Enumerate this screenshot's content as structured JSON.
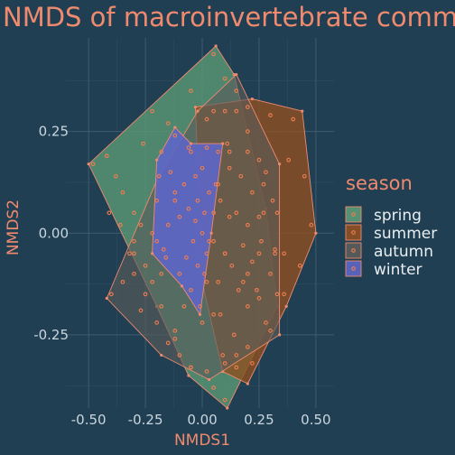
{
  "chart_data": {
    "type": "scatter",
    "title": "NMDS of macroinvertebrate comm",
    "xlabel": "NMDS1",
    "ylabel": "NMDS2",
    "xlim": [
      -0.6,
      0.58
    ],
    "ylim": [
      -0.43,
      0.48
    ],
    "x_ticks": [
      -0.5,
      -0.25,
      0.0,
      0.25,
      0.5
    ],
    "x_tick_labels": [
      "-0.50",
      "-0.25",
      "0.00",
      "0.25",
      "0.50"
    ],
    "y_ticks": [
      -0.25,
      0.0,
      0.25
    ],
    "y_tick_labels": [
      "-0.25",
      "0.00",
      "0.25"
    ],
    "grid": true,
    "legend": {
      "title": "season",
      "position": "right"
    },
    "colors": {
      "background": "#213f52",
      "point": "#f37d4f",
      "hull_stroke": "#f08a6e"
    },
    "series": [
      {
        "name": "spring",
        "fill": "#5b9a76",
        "fill_opacity": 0.78,
        "hull": [
          [
            0.06,
            0.46
          ],
          [
            0.14,
            0.39
          ],
          [
            0.28,
            0.06
          ],
          [
            0.33,
            -0.18
          ],
          [
            0.11,
            -0.43
          ],
          [
            -0.06,
            -0.35
          ],
          [
            -0.2,
            -0.18
          ],
          [
            -0.5,
            0.17
          ]
        ],
        "points": [
          [
            -0.48,
            0.17
          ],
          [
            -0.42,
            0.19
          ],
          [
            -0.38,
            0.14
          ],
          [
            -0.35,
            0.1
          ],
          [
            -0.3,
            0.05
          ],
          [
            -0.27,
            0.02
          ],
          [
            -0.32,
            -0.05
          ],
          [
            -0.25,
            -0.08
          ],
          [
            -0.22,
            -0.12
          ],
          [
            -0.3,
            -0.02
          ],
          [
            -0.18,
            -0.18
          ],
          [
            -0.12,
            -0.26
          ],
          [
            -0.05,
            -0.33
          ],
          [
            0.05,
            -0.38
          ],
          [
            0.1,
            -0.41
          ],
          [
            0.15,
            -0.3
          ],
          [
            0.2,
            -0.18
          ],
          [
            0.25,
            -0.05
          ],
          [
            0.27,
            0.05
          ],
          [
            0.2,
            0.2
          ],
          [
            0.15,
            0.3
          ],
          [
            0.1,
            0.38
          ],
          [
            0.05,
            0.44
          ],
          [
            -0.05,
            0.35
          ],
          [
            -0.15,
            0.27
          ],
          [
            -0.26,
            0.22
          ],
          [
            -0.36,
            0.02
          ],
          [
            -0.41,
            0.05
          ],
          [
            -0.22,
            0.3
          ]
        ]
      },
      {
        "name": "summer",
        "fill": "#8f5021",
        "fill_opacity": 0.8,
        "hull": [
          [
            -0.03,
            0.31
          ],
          [
            0.22,
            0.33
          ],
          [
            0.44,
            0.3
          ],
          [
            0.5,
            0.0
          ],
          [
            0.37,
            -0.18
          ],
          [
            0.2,
            -0.37
          ],
          [
            0.09,
            -0.34
          ],
          [
            0.0,
            -0.12
          ]
        ],
        "points": [
          [
            0.02,
            0.28
          ],
          [
            0.1,
            0.3
          ],
          [
            0.2,
            0.31
          ],
          [
            0.3,
            0.29
          ],
          [
            0.4,
            0.28
          ],
          [
            0.45,
            0.14
          ],
          [
            0.48,
            0.02
          ],
          [
            0.43,
            -0.08
          ],
          [
            0.36,
            -0.15
          ],
          [
            0.28,
            -0.22
          ],
          [
            0.22,
            -0.32
          ],
          [
            0.15,
            -0.33
          ],
          [
            0.09,
            -0.3
          ],
          [
            0.05,
            -0.2
          ],
          [
            0.02,
            -0.12
          ],
          [
            0.01,
            0.05
          ],
          [
            0.12,
            0.2
          ],
          [
            0.25,
            0.18
          ],
          [
            0.33,
            0.05
          ],
          [
            0.36,
            -0.05
          ],
          [
            0.3,
            -0.1
          ],
          [
            0.18,
            -0.12
          ],
          [
            0.1,
            -0.05
          ],
          [
            0.2,
            0.02
          ],
          [
            0.27,
            0.12
          ],
          [
            0.38,
            0.18
          ],
          [
            0.14,
            -0.25
          ],
          [
            0.24,
            -0.14
          ],
          [
            0.07,
            0.12
          ],
          [
            0.32,
            -0.04
          ]
        ]
      },
      {
        "name": "autumn",
        "fill": "#5a5c5a",
        "fill_opacity": 0.62,
        "hull": [
          [
            -0.02,
            0.3
          ],
          [
            0.15,
            0.39
          ],
          [
            0.34,
            0.17
          ],
          [
            0.34,
            -0.25
          ],
          [
            0.03,
            -0.36
          ],
          [
            -0.18,
            -0.3
          ],
          [
            -0.42,
            -0.16
          ],
          [
            -0.2,
            0.13
          ]
        ],
        "points": [
          [
            -0.4,
            -0.15
          ],
          [
            -0.35,
            -0.12
          ],
          [
            -0.3,
            -0.1
          ],
          [
            -0.25,
            -0.15
          ],
          [
            -0.2,
            -0.22
          ],
          [
            -0.15,
            -0.27
          ],
          [
            -0.1,
            -0.3
          ],
          [
            -0.05,
            -0.33
          ],
          [
            0.02,
            -0.34
          ],
          [
            0.1,
            -0.32
          ],
          [
            0.2,
            -0.28
          ],
          [
            0.3,
            -0.24
          ],
          [
            0.33,
            -0.15
          ],
          [
            0.32,
            -0.05
          ],
          [
            0.31,
            0.08
          ],
          [
            0.28,
            0.15
          ],
          [
            0.2,
            0.25
          ],
          [
            0.15,
            0.35
          ],
          [
            0.05,
            0.3
          ],
          [
            -0.05,
            0.2
          ],
          [
            -0.12,
            0.1
          ],
          [
            -0.22,
            0.0
          ],
          [
            -0.3,
            -0.05
          ],
          [
            -0.18,
            -0.1
          ],
          [
            -0.08,
            -0.18
          ],
          [
            0.0,
            -0.22
          ],
          [
            0.08,
            -0.2
          ],
          [
            0.16,
            -0.14
          ],
          [
            0.22,
            -0.07
          ],
          [
            -0.27,
            -0.19
          ],
          [
            -0.12,
            -0.24
          ],
          [
            0.12,
            0.04
          ],
          [
            0.25,
            -0.16
          ]
        ]
      },
      {
        "name": "winter",
        "fill": "#5d66c7",
        "fill_opacity": 0.9,
        "hull": [
          [
            -0.12,
            0.26
          ],
          [
            -0.05,
            0.22
          ],
          [
            0.09,
            0.22
          ],
          [
            0.04,
            0.0
          ],
          [
            -0.01,
            -0.2
          ],
          [
            -0.09,
            -0.13
          ],
          [
            -0.22,
            -0.05
          ],
          [
            -0.2,
            0.18
          ]
        ],
        "points": [
          [
            -0.18,
            0.2
          ],
          [
            -0.12,
            0.24
          ],
          [
            -0.06,
            0.21
          ],
          [
            0.02,
            0.21
          ],
          [
            0.07,
            0.2
          ],
          [
            0.06,
            0.12
          ],
          [
            0.05,
            0.05
          ],
          [
            0.03,
            -0.02
          ],
          [
            0.01,
            -0.1
          ],
          [
            -0.01,
            -0.18
          ],
          [
            -0.05,
            -0.14
          ],
          [
            -0.1,
            -0.1
          ],
          [
            -0.16,
            -0.06
          ],
          [
            -0.2,
            -0.02
          ],
          [
            -0.2,
            0.08
          ],
          [
            -0.19,
            0.14
          ],
          [
            -0.14,
            0.15
          ],
          [
            -0.08,
            0.12
          ],
          [
            -0.02,
            0.08
          ],
          [
            -0.1,
            0.04
          ],
          [
            -0.04,
            -0.02
          ],
          [
            -0.15,
            0.02
          ],
          [
            -0.07,
            -0.06
          ],
          [
            0.0,
            0.16
          ],
          [
            -0.12,
            0.08
          ],
          [
            -0.17,
            -0.04
          ],
          [
            -0.03,
            0.14
          ]
        ]
      }
    ],
    "extra_points": [
      [
        0.0,
        0.0
      ],
      [
        0.05,
        -0.02
      ],
      [
        0.1,
        -0.05
      ],
      [
        0.18,
        -0.03
      ],
      [
        0.22,
        0.1
      ],
      [
        0.12,
        0.16
      ],
      [
        0.08,
        0.08
      ],
      [
        -0.03,
        0.03
      ],
      [
        0.02,
        -0.05
      ],
      [
        0.15,
        0.05
      ],
      [
        -0.06,
        0.06
      ],
      [
        0.03,
        0.1
      ],
      [
        0.2,
        -0.1
      ],
      [
        0.13,
        -0.08
      ],
      [
        0.25,
        0.04
      ],
      [
        0.07,
        -0.12
      ],
      [
        -0.02,
        -0.08
      ],
      [
        0.11,
        0.22
      ],
      [
        0.17,
        0.14
      ],
      [
        0.26,
        -0.02
      ]
    ]
  }
}
